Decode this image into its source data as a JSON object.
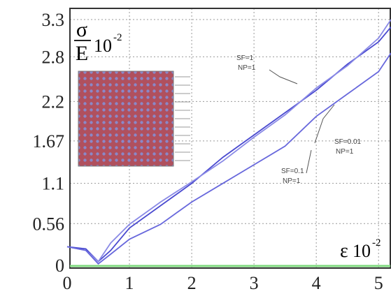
{
  "chart_data": {
    "type": "line",
    "y_label": {
      "numerator": "σ",
      "denominator": "E",
      "base": "10",
      "exponent": "-2"
    },
    "x_label": {
      "symbol": "ε",
      "base": "10",
      "exponent": "-2"
    },
    "x": [
      0,
      0.3,
      0.5,
      0.7,
      1,
      1.5,
      2,
      2.5,
      3,
      3.5,
      4,
      4.5,
      5,
      5.2
    ],
    "series": [
      {
        "color": "#4a4ad0",
        "values": [
          0.25,
          0.22,
          0.05,
          0.2,
          0.5,
          0.8,
          1.1,
          1.45,
          1.75,
          2.05,
          2.35,
          2.7,
          3.0,
          3.2
        ]
      },
      {
        "color": "#8a8ae6",
        "values": [
          0.25,
          0.2,
          0.05,
          0.3,
          0.55,
          0.85,
          1.12,
          1.4,
          1.72,
          2.02,
          2.38,
          2.68,
          3.05,
          3.3
        ]
      },
      {
        "color": "#6868dc",
        "values": [
          0.25,
          0.2,
          0.02,
          0.15,
          0.35,
          0.55,
          0.85,
          1.1,
          1.35,
          1.6,
          2.0,
          2.3,
          2.6,
          2.85
        ]
      }
    ],
    "annotations": [
      {
        "lines": [
          "SF=1",
          "NP=1"
        ]
      },
      {
        "lines": [
          "SF=0.01",
          "NP=1"
        ]
      },
      {
        "lines": [
          "SF=0.1",
          "NP=1"
        ]
      }
    ],
    "xlim": [
      0,
      5.2
    ],
    "ylim": [
      0,
      3.45
    ],
    "xticks": [
      0,
      1,
      2,
      3,
      4,
      5
    ],
    "yticks": [
      0,
      0.56,
      1.1,
      1.67,
      2.2,
      2.8,
      3.3
    ],
    "grid": true
  }
}
